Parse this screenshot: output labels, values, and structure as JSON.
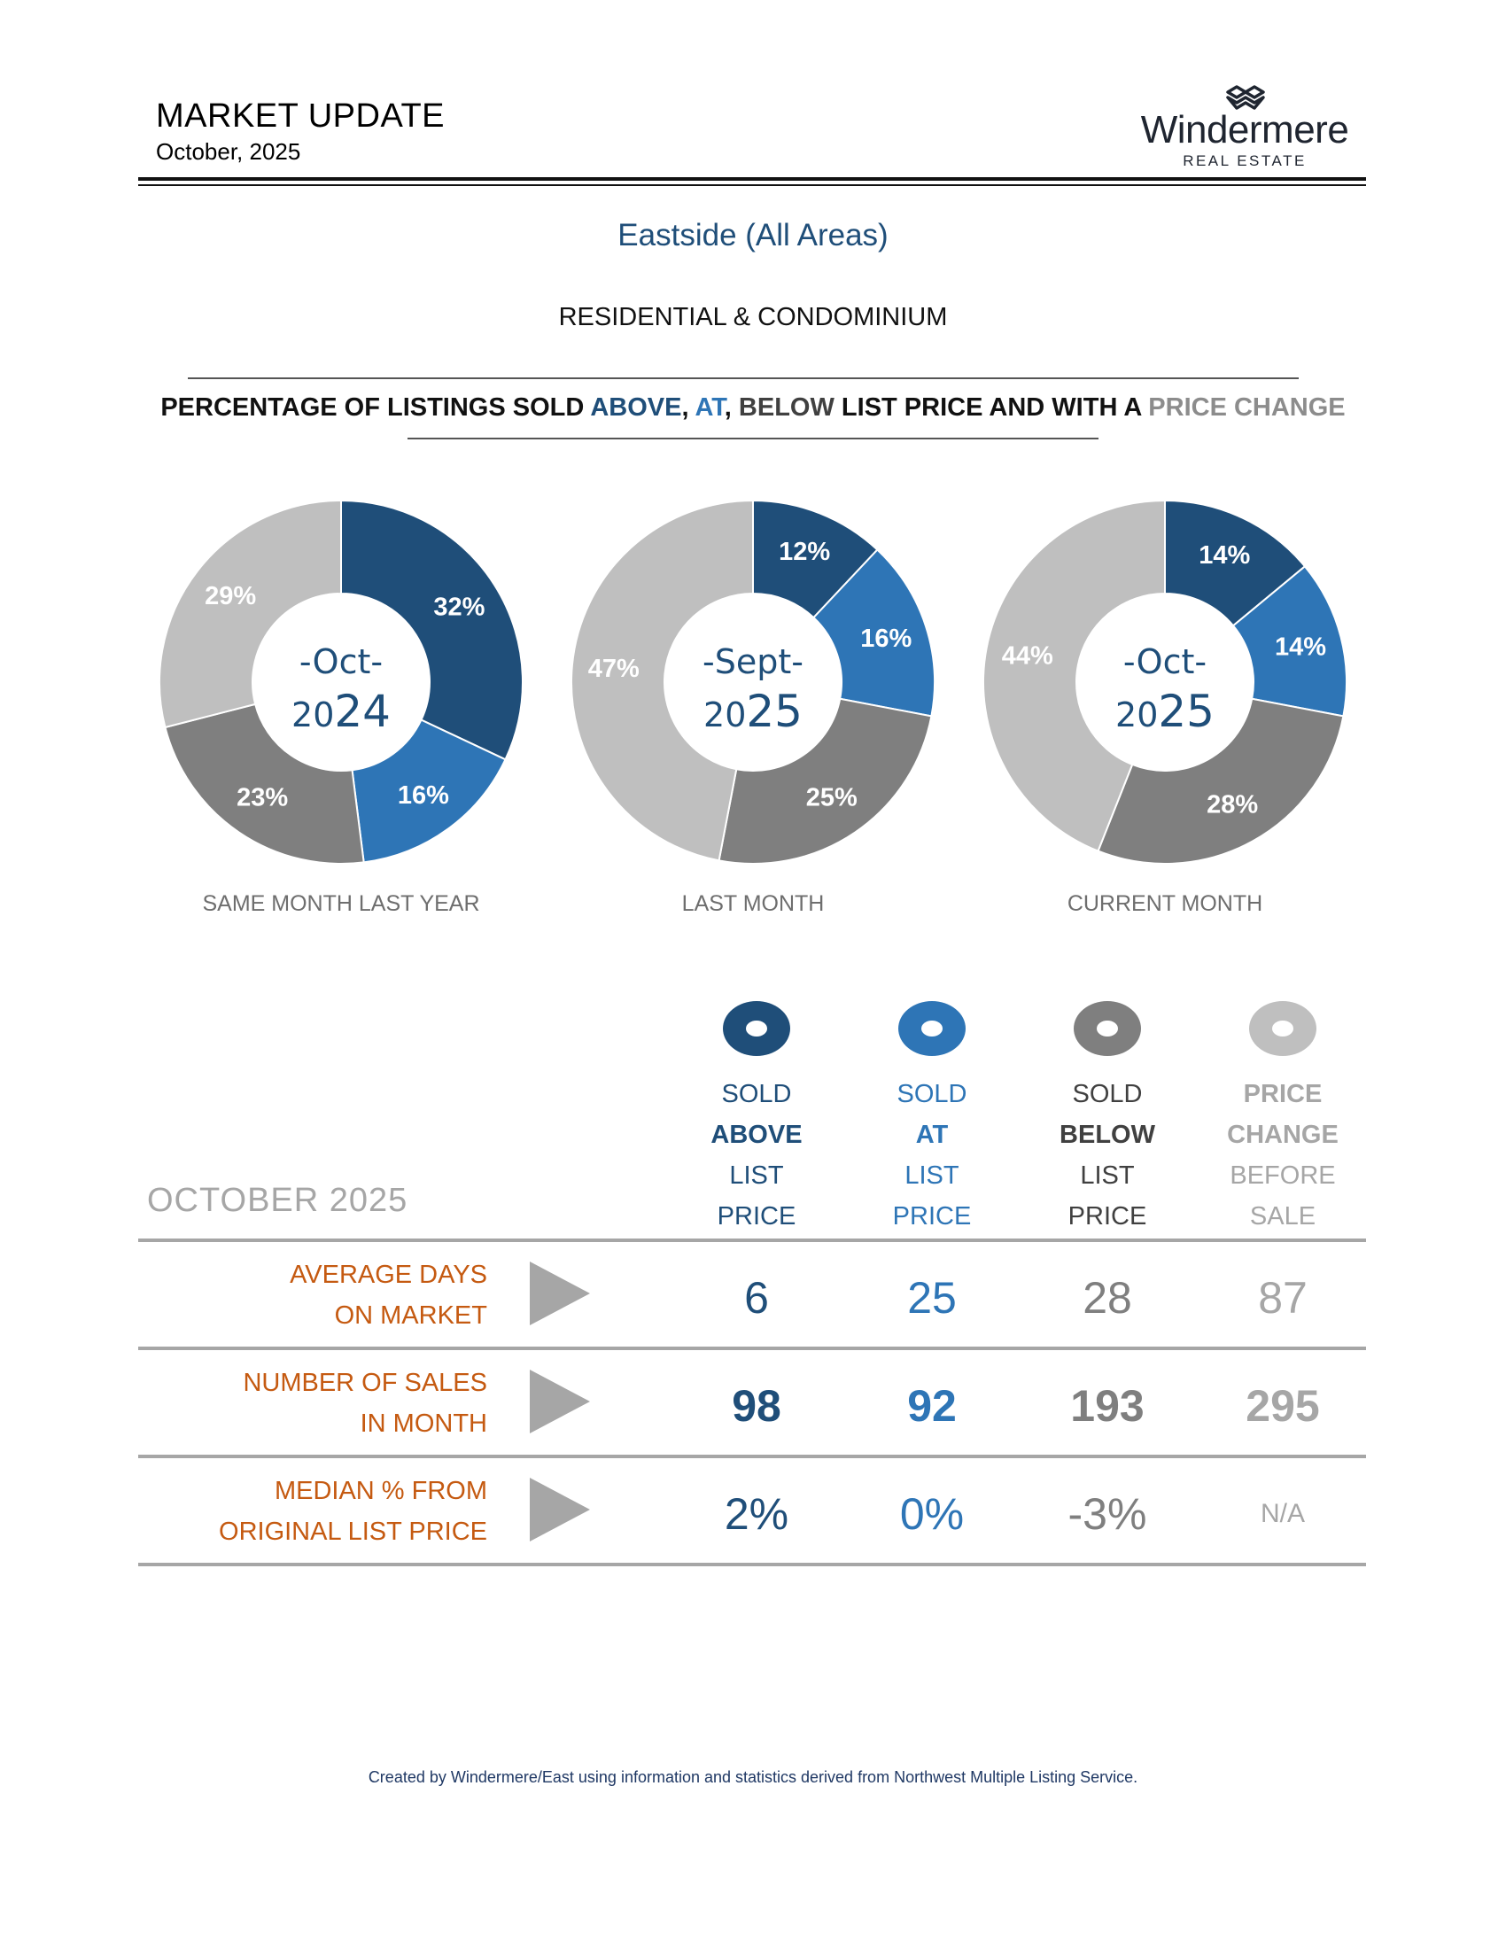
{
  "header": {
    "title": "MARKET UPDATE",
    "date": "October, 2025",
    "logo_name": "Windermere",
    "logo_sub": "REAL ESTATE"
  },
  "region": "Eastside (All Areas)",
  "property_type": "RESIDENTIAL & CONDOMINIUM",
  "headline": {
    "prefix": "PERCENTAGE OF LISTINGS SOLD ",
    "above": "ABOVE",
    "sep1": ", ",
    "at": "AT",
    "sep2": ", ",
    "below": "BELOW",
    "middle": " LIST PRICE AND WITH A ",
    "change": "PRICE CHANGE"
  },
  "colors": {
    "above": "#1f4e79",
    "at": "#2e75b6",
    "below": "#7f7f7f",
    "change": "#bfbfbf",
    "label_orange": "#c55a11"
  },
  "chart_data": [
    {
      "type": "pie",
      "variant": "donut",
      "title": "SAME MONTH LAST YEAR",
      "center_month": "-Oct-",
      "center_year_prefix": "20",
      "center_year_suffix": "24",
      "categories": [
        "Sold Above",
        "Sold At",
        "Sold Below",
        "Price Change"
      ],
      "values": [
        32,
        16,
        23,
        29
      ],
      "labels": [
        "32%",
        "16%",
        "23%",
        "29%"
      ]
    },
    {
      "type": "pie",
      "variant": "donut",
      "title": "LAST MONTH",
      "center_month": "-Sept-",
      "center_year_prefix": "20",
      "center_year_suffix": "25",
      "categories": [
        "Sold Above",
        "Sold At",
        "Sold Below",
        "Price Change"
      ],
      "values": [
        12,
        16,
        25,
        47
      ],
      "labels": [
        "12%",
        "16%",
        "25%",
        "47%"
      ]
    },
    {
      "type": "pie",
      "variant": "donut",
      "title": "CURRENT MONTH",
      "center_month": "-Oct-",
      "center_year_prefix": "20",
      "center_year_suffix": "25",
      "categories": [
        "Sold Above",
        "Sold At",
        "Sold Below",
        "Price Change"
      ],
      "values": [
        14,
        14,
        28,
        44
      ],
      "labels": [
        "14%",
        "14%",
        "28%",
        "44%"
      ]
    }
  ],
  "table": {
    "month_label": "OCTOBER 2025",
    "columns": [
      {
        "key": "above",
        "lines": [
          "SOLD",
          "ABOVE",
          "LIST",
          "PRICE"
        ],
        "color": "#1f4e79"
      },
      {
        "key": "at",
        "lines": [
          "SOLD",
          "AT",
          "LIST",
          "PRICE"
        ],
        "color": "#2e75b6"
      },
      {
        "key": "below",
        "lines": [
          "SOLD",
          "BELOW",
          "LIST",
          "PRICE"
        ],
        "color": "#404040"
      },
      {
        "key": "change",
        "lines": [
          "PRICE",
          "CHANGE",
          "BEFORE",
          "SALE"
        ],
        "color": "#a6a6a6"
      }
    ],
    "rows": [
      {
        "label1": "AVERAGE DAYS",
        "label2": "ON MARKET",
        "values": [
          "6",
          "25",
          "28",
          "87"
        ]
      },
      {
        "label1": "NUMBER OF SALES",
        "label2": "IN MONTH",
        "values": [
          "98",
          "92",
          "193",
          "295"
        ]
      },
      {
        "label1": "MEDIAN % FROM",
        "label2": "ORIGINAL LIST PRICE",
        "values": [
          "2%",
          "0%",
          "-3%",
          "N/A"
        ]
      }
    ]
  },
  "footer": "Created by Windermere/East using information and statistics derived from Northwest Multiple Listing Service."
}
